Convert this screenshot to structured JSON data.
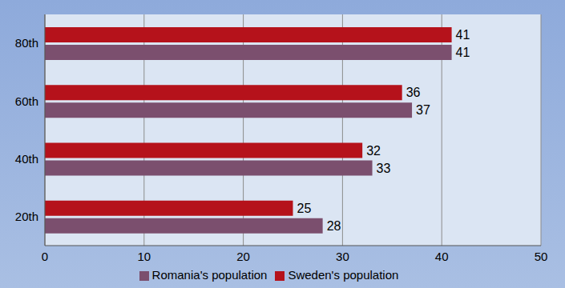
{
  "chart_data": {
    "type": "bar",
    "orientation": "horizontal",
    "categories": [
      "20th",
      "40th",
      "60th",
      "80th"
    ],
    "series": [
      {
        "name": "Sweden's population",
        "color": "#b5121b",
        "values": [
          25,
          32,
          36,
          41
        ]
      },
      {
        "name": "Romania's population",
        "color": "#7b4f6e",
        "values": [
          28,
          33,
          37,
          41
        ]
      }
    ],
    "xlim": [
      0,
      50
    ],
    "xticks": [
      0,
      10,
      20,
      30,
      40,
      50
    ],
    "grid": true,
    "legend": "bottom",
    "data_labels": true
  }
}
